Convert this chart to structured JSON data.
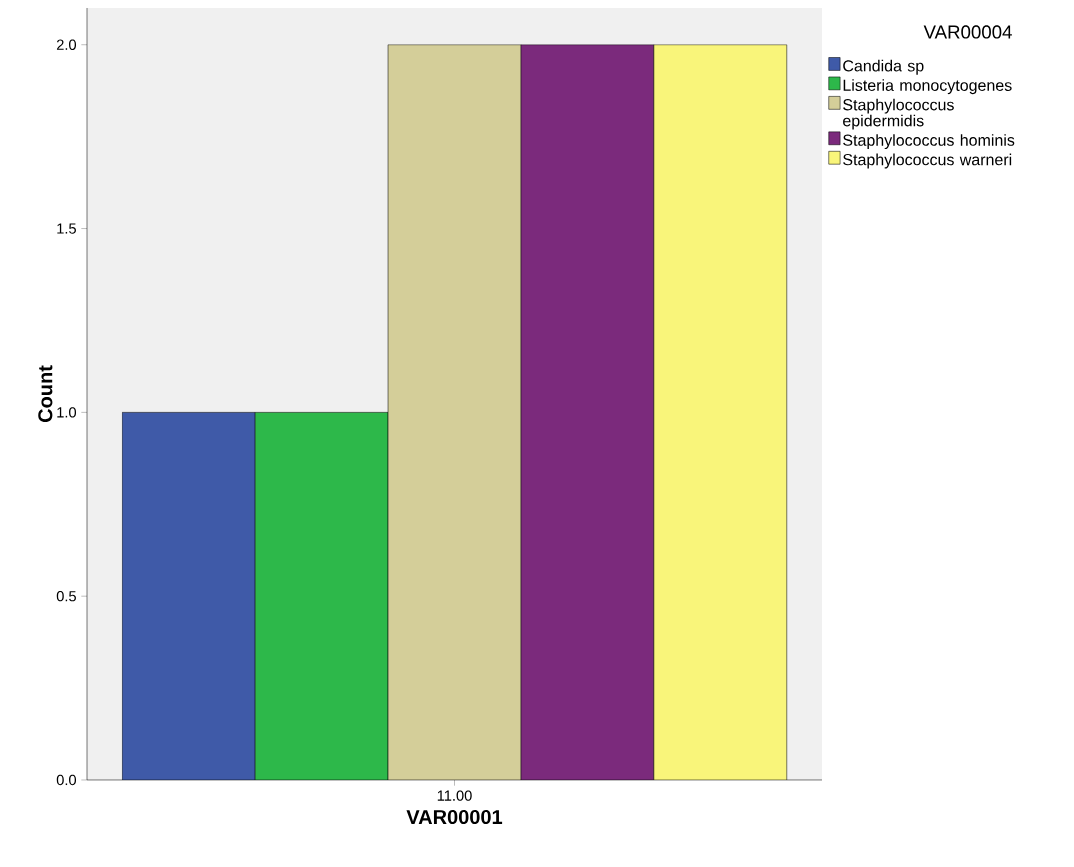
{
  "chart_data": {
    "type": "bar",
    "xlabel": "VAR00001",
    "ylabel": "Count",
    "legend_title": "VAR00004",
    "categories": [
      "11.00"
    ],
    "series": [
      {
        "name": "Candida sp",
        "color": "#3f5aa8",
        "values": [
          1
        ]
      },
      {
        "name": "Listeria monocytogenes",
        "color": "#2db84a",
        "values": [
          1
        ]
      },
      {
        "name": "Staphylococcus epidermidis",
        "color": "#d4ce99",
        "values": [
          2
        ]
      },
      {
        "name": "Staphylococcus hominis",
        "color": "#7b2a7c",
        "values": [
          2
        ]
      },
      {
        "name": "Staphylococcus warneri",
        "color": "#f9f57a",
        "values": [
          2
        ]
      }
    ],
    "ylim": [
      0,
      2.1
    ],
    "yticks": [
      {
        "value": 0,
        "label": "0.0"
      },
      {
        "value": 0.5,
        "label": "0.5"
      },
      {
        "value": 1,
        "label": "1.0"
      },
      {
        "value": 1.5,
        "label": "1.5"
      },
      {
        "value": 2,
        "label": "2.0"
      }
    ],
    "grid": false,
    "legend": "top right"
  }
}
